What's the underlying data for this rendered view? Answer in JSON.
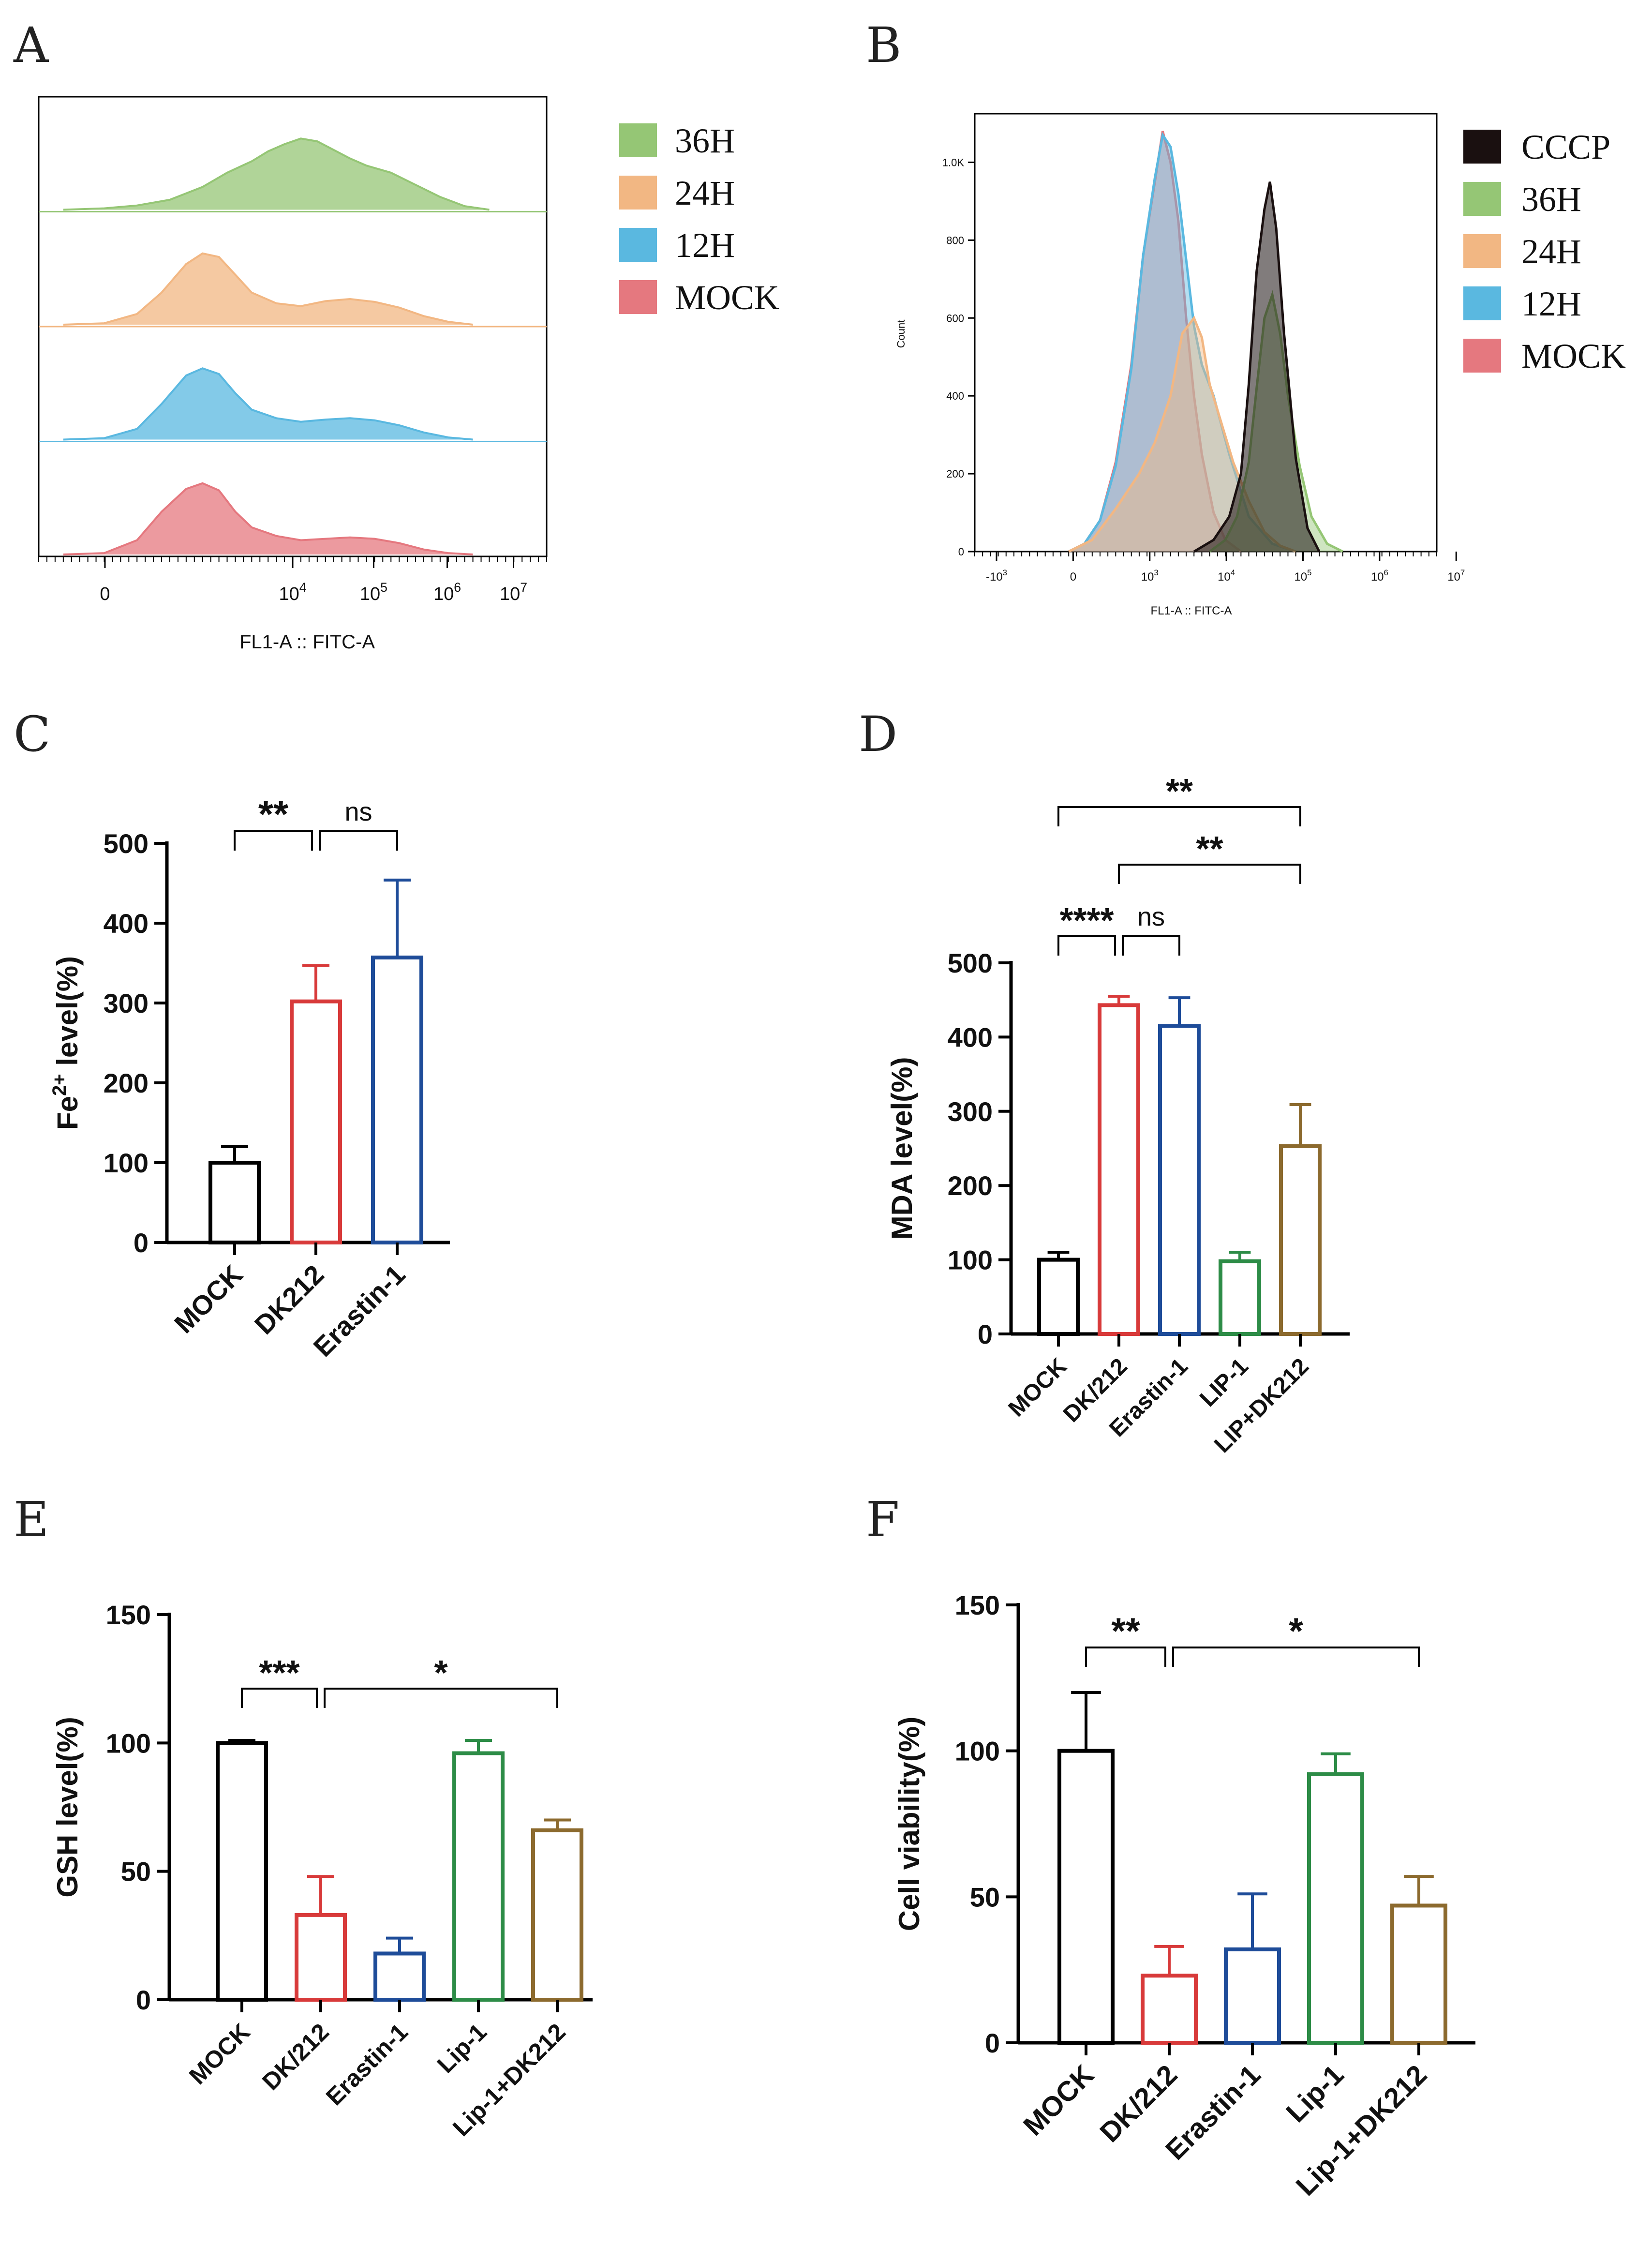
{
  "chart_data": [
    {
      "panel": "A",
      "type": "area",
      "subtype": "flow-cytometry-offset-histograms",
      "xlabel": "FL1-A :: FITC-A",
      "x_ticks": [
        "0",
        "10^4",
        "10^5",
        "10^6",
        "10^7"
      ],
      "legend": [
        "36H",
        "24H",
        "12H",
        "MOCK"
      ],
      "colors": [
        "#95c675",
        "#f2b783",
        "#5ab8e0",
        "#e5787f"
      ],
      "series": [
        {
          "name": "36H",
          "x": [
            0.3,
            0.8,
            1.2,
            1.6,
            2.0,
            2.3,
            2.6,
            2.8,
            3.0,
            3.2,
            3.4,
            3.6,
            3.8,
            4.0,
            4.3,
            4.6,
            4.9,
            5.2,
            5.5
          ],
          "values": [
            0,
            0.02,
            0.06,
            0.14,
            0.32,
            0.52,
            0.68,
            0.82,
            0.92,
            1.0,
            0.96,
            0.84,
            0.72,
            0.62,
            0.52,
            0.35,
            0.18,
            0.05,
            0
          ]
        },
        {
          "name": "24H",
          "x": [
            0.3,
            0.8,
            1.2,
            1.5,
            1.8,
            2.0,
            2.2,
            2.4,
            2.6,
            2.9,
            3.2,
            3.5,
            3.8,
            4.1,
            4.4,
            4.7,
            5.0,
            5.3
          ],
          "values": [
            0,
            0.02,
            0.15,
            0.45,
            0.85,
            1.0,
            0.95,
            0.7,
            0.45,
            0.3,
            0.26,
            0.33,
            0.36,
            0.32,
            0.24,
            0.12,
            0.04,
            0
          ]
        },
        {
          "name": "12H",
          "x": [
            0.3,
            0.8,
            1.2,
            1.5,
            1.8,
            2.0,
            2.2,
            2.4,
            2.6,
            2.9,
            3.2,
            3.5,
            3.8,
            4.1,
            4.4,
            4.7,
            5.0,
            5.3
          ],
          "values": [
            0,
            0.02,
            0.15,
            0.5,
            0.9,
            1.0,
            0.92,
            0.65,
            0.42,
            0.3,
            0.25,
            0.28,
            0.3,
            0.27,
            0.2,
            0.1,
            0.03,
            0
          ]
        },
        {
          "name": "MOCK",
          "x": [
            0.3,
            0.8,
            1.2,
            1.5,
            1.8,
            2.0,
            2.2,
            2.4,
            2.6,
            2.9,
            3.2,
            3.5,
            3.8,
            4.1,
            4.4,
            4.7,
            5.0,
            5.3
          ],
          "values": [
            0,
            0.02,
            0.2,
            0.6,
            0.92,
            1.0,
            0.9,
            0.6,
            0.38,
            0.26,
            0.2,
            0.22,
            0.24,
            0.22,
            0.16,
            0.07,
            0.02,
            0
          ]
        }
      ]
    },
    {
      "panel": "B",
      "type": "area",
      "subtype": "flow-cytometry-overlay",
      "xlabel": "FL1-A :: FITC-A",
      "ylabel": "Count",
      "y_ticks": [
        "0",
        "200",
        "400",
        "600",
        "800",
        "1.0K"
      ],
      "x_ticks": [
        "-10^3",
        "0",
        "10^3",
        "10^4",
        "10^5",
        "10^6",
        "10^7"
      ],
      "ylim": [
        0,
        1100
      ],
      "legend": [
        "CCCP",
        "36H",
        "24H",
        "12H",
        "MOCK"
      ],
      "colors": [
        "#1a1010",
        "#95c675",
        "#f2b783",
        "#5ab8e0",
        "#e5787f"
      ],
      "series": [
        {
          "name": "MOCK",
          "x": [
            2.4,
            2.6,
            2.8,
            3.0,
            3.2,
            3.35,
            3.5,
            3.6,
            3.7,
            3.8,
            3.9,
            4.0,
            4.1,
            4.25,
            4.4,
            4.6
          ],
          "values": [
            0,
            20,
            80,
            230,
            480,
            760,
            950,
            1080,
            1000,
            850,
            600,
            400,
            250,
            100,
            30,
            0
          ]
        },
        {
          "name": "12H",
          "x": [
            2.4,
            2.6,
            2.8,
            3.0,
            3.2,
            3.35,
            3.5,
            3.6,
            3.7,
            3.8,
            3.9,
            4.0,
            4.1,
            4.25,
            4.45,
            4.7,
            5.0,
            5.3
          ],
          "values": [
            0,
            20,
            80,
            220,
            470,
            760,
            960,
            1070,
            1040,
            920,
            750,
            580,
            480,
            400,
            250,
            90,
            20,
            0
          ]
        },
        {
          "name": "24H",
          "x": [
            2.4,
            2.7,
            3.0,
            3.3,
            3.5,
            3.7,
            3.85,
            4.0,
            4.1,
            4.2,
            4.35,
            4.5,
            4.7,
            4.9,
            5.1,
            5.3
          ],
          "values": [
            0,
            30,
            110,
            200,
            280,
            400,
            560,
            600,
            550,
            430,
            330,
            230,
            130,
            50,
            15,
            0
          ]
        },
        {
          "name": "36H",
          "x": [
            4.2,
            4.4,
            4.55,
            4.7,
            4.8,
            4.9,
            5.0,
            5.1,
            5.2,
            5.35,
            5.5,
            5.7,
            5.9
          ],
          "values": [
            0,
            30,
            90,
            230,
            420,
            600,
            660,
            560,
            400,
            220,
            90,
            20,
            0
          ]
        },
        {
          "name": "CCCP",
          "x": [
            4.0,
            4.25,
            4.45,
            4.6,
            4.7,
            4.8,
            4.9,
            4.97,
            5.05,
            5.15,
            5.3,
            5.45,
            5.6
          ],
          "values": [
            0,
            30,
            90,
            200,
            430,
            720,
            880,
            950,
            830,
            560,
            240,
            60,
            0
          ]
        }
      ]
    },
    {
      "panel": "C",
      "type": "bar",
      "categories": [
        "MOCK",
        "DK212",
        "Erastin-1"
      ],
      "values": [
        100,
        302,
        357
      ],
      "errors": [
        20,
        45,
        97
      ],
      "colors": [
        "#000000",
        "#d83a3a",
        "#1e4c99"
      ],
      "ylabel_main": "Fe",
      "ylabel_sup": "2+",
      "ylabel_rest": "level(%)",
      "ylim": [
        0,
        500
      ],
      "y_ticks": [
        "0",
        "100",
        "200",
        "300",
        "400",
        "500"
      ],
      "significance": [
        {
          "from": 0,
          "to": 1,
          "label": "**"
        },
        {
          "from": 1,
          "to": 2,
          "label": "ns"
        }
      ]
    },
    {
      "panel": "D",
      "type": "bar",
      "categories": [
        "MOCK",
        "DK/212",
        "Erastin-1",
        "LIP-1",
        "LIP+DK212"
      ],
      "values": [
        100,
        443,
        415,
        98,
        253
      ],
      "errors": [
        10,
        12,
        38,
        12,
        56
      ],
      "colors": [
        "#000000",
        "#d83a3a",
        "#1e4c99",
        "#2d8c47",
        "#8c6a2e"
      ],
      "ylabel": "MDA level(%)",
      "ylim": [
        0,
        500
      ],
      "y_ticks": [
        "0",
        "100",
        "200",
        "300",
        "400",
        "500"
      ],
      "significance": [
        {
          "from": 0,
          "to": 4,
          "label": "**"
        },
        {
          "from": 1,
          "to": 4,
          "label": "**"
        },
        {
          "from": 0,
          "to": 1,
          "label": "****"
        },
        {
          "from": 1,
          "to": 2,
          "label": "ns"
        }
      ]
    },
    {
      "panel": "E",
      "type": "bar",
      "categories": [
        "MOCK",
        "DK/212",
        "Erastin-1",
        "Lip-1",
        "Lip-1+DK212"
      ],
      "values": [
        100,
        33,
        18,
        96,
        66
      ],
      "errors": [
        1,
        15,
        6,
        5,
        4
      ],
      "colors": [
        "#000000",
        "#d83a3a",
        "#1e4c99",
        "#2d8c47",
        "#8c6a2e"
      ],
      "ylabel": "GSH  level(%)",
      "ylim": [
        0,
        150
      ],
      "y_ticks": [
        "0",
        "50",
        "100",
        "150"
      ],
      "significance": [
        {
          "from": 0,
          "to": 1,
          "label": "***"
        },
        {
          "from": 1,
          "to": 4,
          "label": "*"
        }
      ]
    },
    {
      "panel": "F",
      "type": "bar",
      "categories": [
        "MOCK",
        "DK/212",
        "Erastin-1",
        "Lip-1",
        "Lip-1+DK212"
      ],
      "values": [
        100,
        23,
        32,
        92,
        47
      ],
      "errors": [
        20,
        10,
        19,
        7,
        10
      ],
      "colors": [
        "#000000",
        "#d83a3a",
        "#1e4c99",
        "#2d8c47",
        "#8c6a2e"
      ],
      "ylabel": "Cell viability(%)",
      "ylim": [
        0,
        150
      ],
      "y_ticks": [
        "0",
        "50",
        "100",
        "150"
      ],
      "significance": [
        {
          "from": 0,
          "to": 1,
          "label": "**"
        },
        {
          "from": 1,
          "to": 4,
          "label": "*"
        }
      ]
    }
  ],
  "panel_labels": [
    "A",
    "B",
    "C",
    "D",
    "E",
    "F"
  ]
}
